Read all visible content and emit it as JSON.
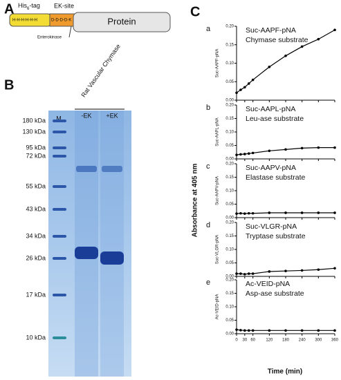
{
  "panel_a": {
    "letter": "A",
    "tag": "His",
    "tag_sub": "6",
    "tag_suffix": "-tag",
    "his": "H-H-H-H-H-H",
    "site": "EK-site",
    "asp": "D-D-D-D-K",
    "protein": "Protein",
    "enzyme": "Enterokinase"
  },
  "panel_b": {
    "letter": "B",
    "marker_lane": "M",
    "sample": "Rat Vascular Chymase",
    "lanes": [
      "-EK",
      "+EK"
    ],
    "markers": [
      "180 kDa",
      "130 kDa",
      "95 kDa",
      "72 kDa",
      "55 kDa",
      "43 kDa",
      "34 kDa",
      "26 kDa",
      "17 kDa",
      "10 kDa"
    ]
  },
  "panel_c": {
    "letter": "C",
    "ylabel": "Absorbance at 405 nm",
    "xlabel": "Time (min)"
  },
  "chart_data": [
    {
      "type": "line",
      "panel": "a",
      "title": [
        "Suc-AAPF-pNA",
        "Chymase substrate"
      ],
      "ylabel": "Suc-AAPF-pNA",
      "x": [
        0,
        15,
        30,
        45,
        60,
        120,
        180,
        240,
        300,
        360
      ],
      "values": [
        0.02,
        0.028,
        0.035,
        0.045,
        0.055,
        0.09,
        0.12,
        0.145,
        0.165,
        0.19
      ],
      "xlim": [
        0,
        360
      ],
      "xticks": [
        0,
        30,
        60,
        120,
        180,
        240,
        300,
        360
      ],
      "ylim": [
        0,
        0.2
      ],
      "yticks": [
        {
          "value": 0,
          "label": "0.00"
        },
        {
          "value": 0.05,
          "label": "0.05"
        },
        {
          "value": 0.1,
          "label": "0.10"
        },
        {
          "value": 0.15,
          "label": "0.15"
        },
        {
          "value": 0.2,
          "label": "0.20"
        }
      ],
      "color": "#000000"
    },
    {
      "type": "line",
      "panel": "b",
      "title": [
        "Suc-AAPL-pNA",
        "Leu-ase substrate"
      ],
      "ylabel": "Suc-AAPL-pNA",
      "x": [
        0,
        15,
        30,
        45,
        60,
        120,
        180,
        240,
        300,
        360
      ],
      "values": [
        0.015,
        0.017,
        0.018,
        0.02,
        0.022,
        0.03,
        0.035,
        0.04,
        0.042,
        0.042
      ],
      "xlim": [
        0,
        360
      ],
      "xticks": [
        0,
        30,
        60,
        120,
        180,
        240,
        300,
        360
      ],
      "ylim": [
        0,
        0.2
      ],
      "yticks": [
        {
          "value": 0,
          "label": "0.00"
        },
        {
          "value": 0.05,
          "label": "0.05"
        },
        {
          "value": 0.1,
          "label": "0.10"
        },
        {
          "value": 0.15,
          "label": "0.15"
        },
        {
          "value": 0.2,
          "label": "0.20"
        }
      ],
      "color": "#000000"
    },
    {
      "type": "line",
      "panel": "c",
      "title": [
        "Suc-AAPV-pNA",
        "Elastase substrate"
      ],
      "ylabel": "Suc-AAPV-pNA",
      "x": [
        0,
        15,
        30,
        45,
        60,
        120,
        180,
        240,
        300,
        360
      ],
      "values": [
        0.015,
        0.016,
        0.015,
        0.016,
        0.016,
        0.018,
        0.018,
        0.018,
        0.018,
        0.018
      ],
      "xlim": [
        0,
        360
      ],
      "xticks": [
        0,
        30,
        60,
        120,
        180,
        240,
        300,
        360
      ],
      "ylim": [
        0,
        0.2
      ],
      "yticks": [
        {
          "value": 0,
          "label": "0.00"
        },
        {
          "value": 0.05,
          "label": "0.05"
        },
        {
          "value": 0.1,
          "label": "0.10"
        },
        {
          "value": 0.15,
          "label": "0.15"
        },
        {
          "value": 0.2,
          "label": "0.20"
        }
      ],
      "color": "#000000"
    },
    {
      "type": "line",
      "panel": "d",
      "title": [
        "Suc-VLGR-pNA",
        "Tryptase substrate"
      ],
      "ylabel": "Suc-VLGR-pNA",
      "x": [
        0,
        15,
        30,
        45,
        60,
        120,
        180,
        240,
        300,
        360
      ],
      "values": [
        0.01,
        0.01,
        0.008,
        0.01,
        0.01,
        0.018,
        0.02,
        0.022,
        0.025,
        0.03
      ],
      "xlim": [
        0,
        360
      ],
      "xticks": [
        0,
        30,
        60,
        120,
        180,
        240,
        300,
        360
      ],
      "ylim": [
        0,
        0.2
      ],
      "yticks": [
        {
          "value": 0,
          "label": "0.00"
        },
        {
          "value": 0.05,
          "label": "0.05"
        },
        {
          "value": 0.1,
          "label": "0.10"
        },
        {
          "value": 0.15,
          "label": "0.15"
        },
        {
          "value": 0.2,
          "label": "0.20"
        }
      ],
      "color": "#000000"
    },
    {
      "type": "line",
      "panel": "e",
      "title": [
        "Ac-VEID-pNA",
        "Asp-ase substrate"
      ],
      "ylabel": "Ac-VEID-pNA",
      "x": [
        0,
        15,
        30,
        45,
        60,
        120,
        180,
        240,
        300,
        360
      ],
      "values": [
        0.015,
        0.013,
        0.012,
        0.012,
        0.012,
        0.012,
        0.012,
        0.012,
        0.012,
        0.012
      ],
      "xlim": [
        0,
        360
      ],
      "xticks": [
        0,
        30,
        60,
        120,
        180,
        240,
        300,
        360
      ],
      "ylim": [
        0,
        0.2
      ],
      "yticks": [
        {
          "value": 0,
          "label": "0.00"
        },
        {
          "value": 0.05,
          "label": "0.05"
        },
        {
          "value": 0.1,
          "label": "0.10"
        },
        {
          "value": 0.15,
          "label": "0.15"
        },
        {
          "value": 0.2,
          "label": "0.20"
        }
      ],
      "color": "#000000"
    }
  ]
}
